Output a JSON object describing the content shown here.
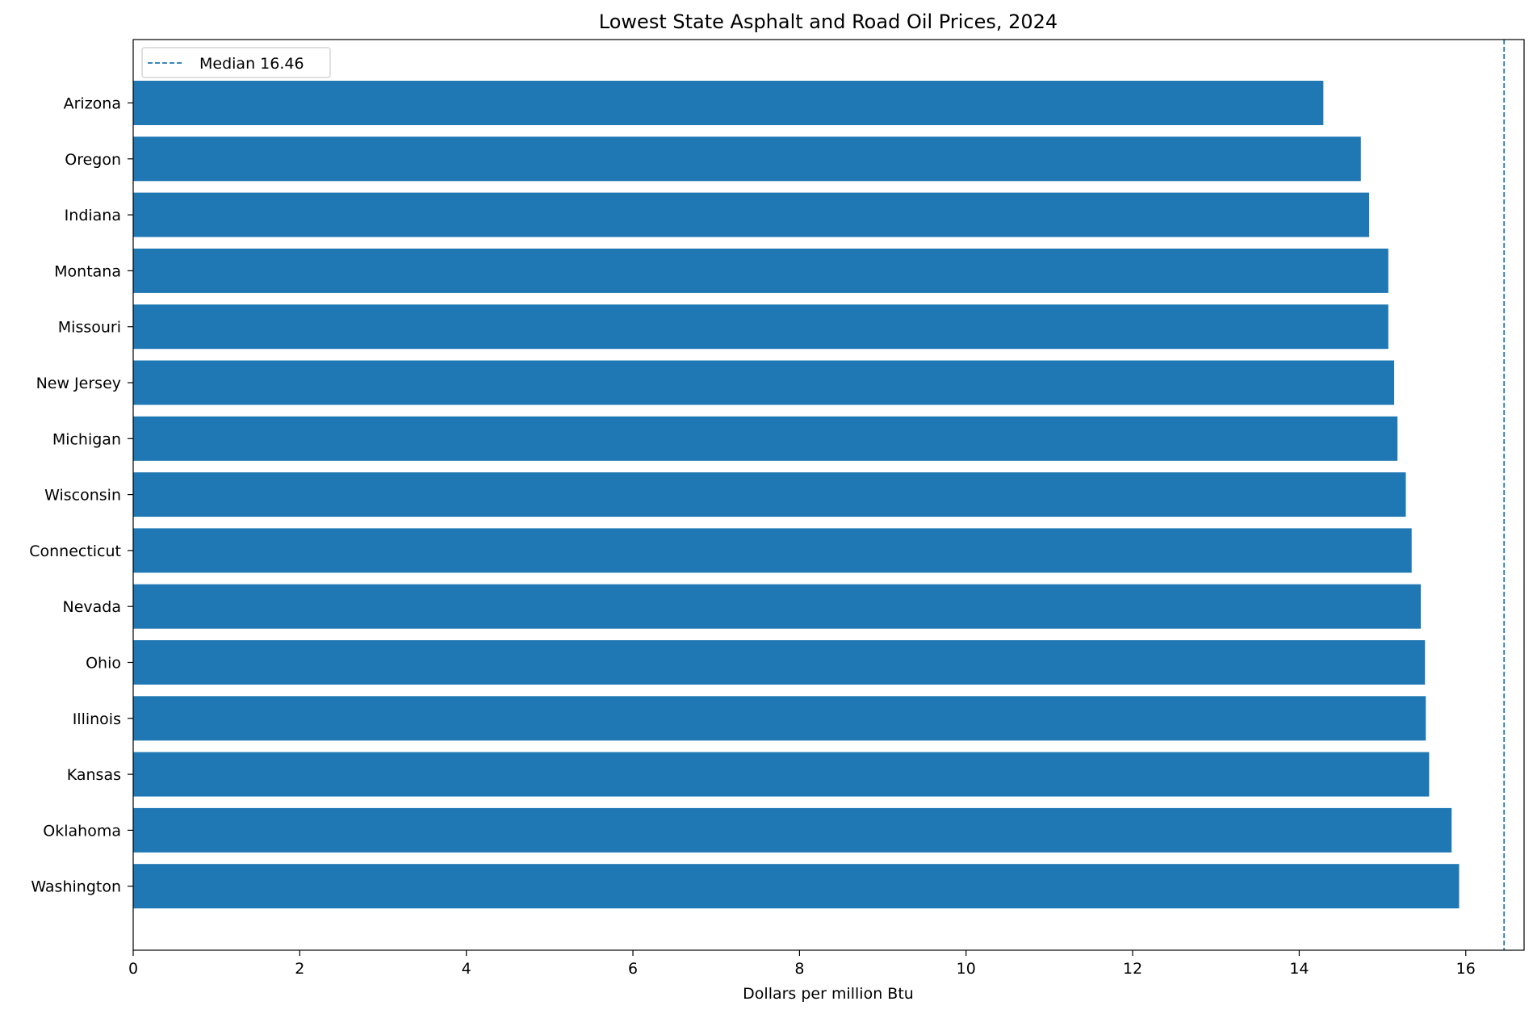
{
  "chart_data": {
    "type": "bar",
    "orientation": "horizontal",
    "title": "Lowest State Asphalt and Road Oil Prices, 2024",
    "xlabel": "Dollars per million Btu",
    "ylabel": "",
    "xlim": [
      0,
      16.7
    ],
    "xticks": [
      0,
      2,
      4,
      6,
      8,
      10,
      12,
      14,
      16
    ],
    "categories": [
      "Arizona",
      "Oregon",
      "Indiana",
      "Montana",
      "Missouri",
      "New Jersey",
      "Michigan",
      "Wisconsin",
      "Connecticut",
      "Nevada",
      "Ohio",
      "Illinois",
      "Kansas",
      "Oklahoma",
      "Washington"
    ],
    "values": [
      14.29,
      14.74,
      14.84,
      15.07,
      15.07,
      15.14,
      15.18,
      15.28,
      15.35,
      15.46,
      15.51,
      15.52,
      15.56,
      15.83,
      15.92
    ],
    "bar_color": "#1f77b4",
    "median": {
      "value": 16.46,
      "label": "Median 16.46",
      "color": "#1f77b4",
      "style": "dashed"
    },
    "grid": false,
    "legend": {
      "position": "top-left"
    }
  }
}
